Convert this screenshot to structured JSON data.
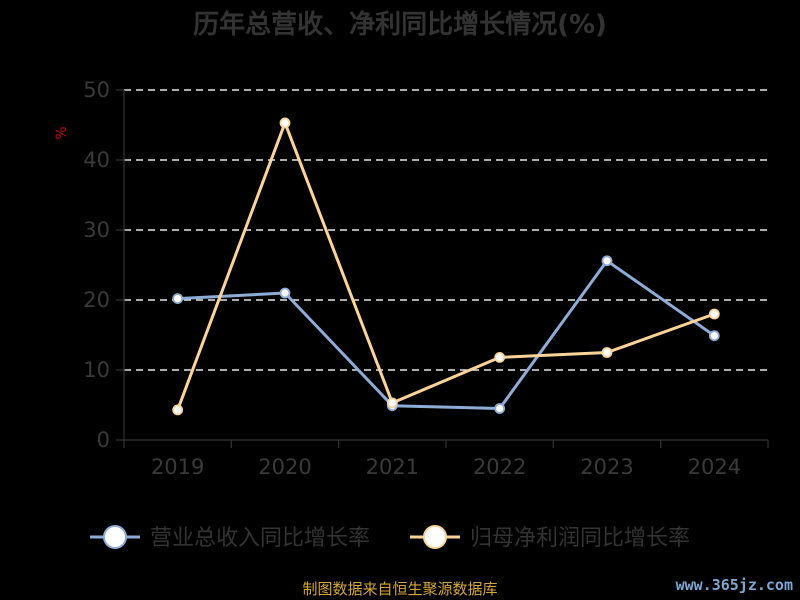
{
  "chart_data": {
    "type": "line",
    "title": "历年总营收、净利同比增长情况(%)",
    "ylabel": "%",
    "categories": [
      "2019",
      "2020",
      "2021",
      "2022",
      "2023",
      "2024"
    ],
    "ylim": [
      0,
      50
    ],
    "yticks": [
      "0",
      "10",
      "20",
      "30",
      "40",
      "50"
    ],
    "grid": true,
    "legend_position": "bottom",
    "series": [
      {
        "name": "营业总收入同比增长率",
        "values": [
          20.2,
          21.0,
          4.9,
          4.5,
          25.6,
          14.9
        ],
        "color": "#8eacd8"
      },
      {
        "name": "归母净利润同比增长率",
        "values": [
          4.3,
          45.3,
          5.3,
          11.8,
          12.5,
          18.0
        ],
        "color": "#fcd49a"
      }
    ]
  },
  "footer": {
    "source": "制图数据来自恒生聚源数据库",
    "watermark": "www.365jz.com"
  }
}
